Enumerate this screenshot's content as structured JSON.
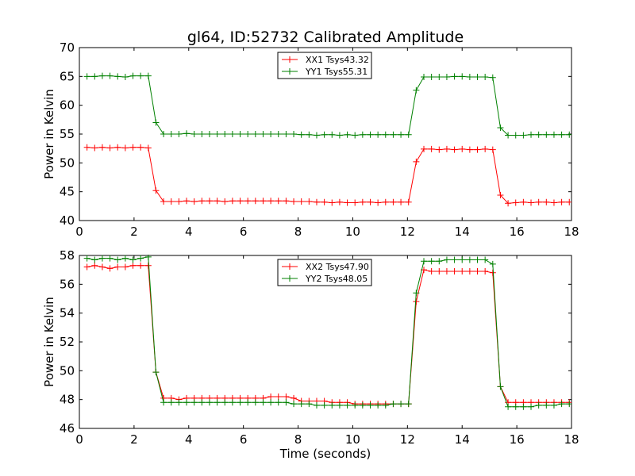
{
  "title": "gl64, ID:52732 Calibrated Amplitude",
  "xlabel": "Time (seconds)",
  "chart_data": [
    {
      "type": "line",
      "ylabel": "Power in Kelvin",
      "xlim": [
        0,
        18
      ],
      "ylim": [
        40,
        70
      ],
      "xticks": [
        "0",
        "2",
        "4",
        "6",
        "8",
        "10",
        "12",
        "14",
        "16",
        "18"
      ],
      "yticks": [
        "40",
        "45",
        "50",
        "55",
        "60",
        "65",
        "70"
      ],
      "legend_position": "upper center",
      "x": [
        0.28,
        0.56,
        0.84,
        1.12,
        1.4,
        1.68,
        1.96,
        2.24,
        2.52,
        2.8,
        3.08,
        3.36,
        3.64,
        3.92,
        4.2,
        4.48,
        4.76,
        5.04,
        5.32,
        5.6,
        5.88,
        6.16,
        6.44,
        6.72,
        7.0,
        7.28,
        7.56,
        7.84,
        8.12,
        8.4,
        8.68,
        8.96,
        9.24,
        9.52,
        9.8,
        10.08,
        10.36,
        10.64,
        10.92,
        11.2,
        11.48,
        11.76,
        12.04,
        12.32,
        12.6,
        12.88,
        13.16,
        13.44,
        13.72,
        14.0,
        14.28,
        14.56,
        14.84,
        15.12,
        15.4,
        15.68,
        15.96,
        16.24,
        16.52,
        16.8,
        17.08,
        17.36,
        17.64,
        17.92
      ],
      "series": [
        {
          "name": "XX1 Tsys43.32",
          "color": "#ff0000",
          "values": [
            52.7,
            52.6,
            52.7,
            52.6,
            52.7,
            52.6,
            52.7,
            52.7,
            52.6,
            45.2,
            43.3,
            43.3,
            43.3,
            43.4,
            43.3,
            43.4,
            43.4,
            43.4,
            43.3,
            43.4,
            43.4,
            43.4,
            43.4,
            43.4,
            43.4,
            43.4,
            43.4,
            43.3,
            43.3,
            43.3,
            43.2,
            43.2,
            43.1,
            43.2,
            43.1,
            43.1,
            43.2,
            43.2,
            43.1,
            43.2,
            43.2,
            43.2,
            43.2,
            50.2,
            52.4,
            52.4,
            52.3,
            52.4,
            52.3,
            52.4,
            52.3,
            52.3,
            52.4,
            52.3,
            44.4,
            43.0,
            43.1,
            43.2,
            43.1,
            43.2,
            43.2,
            43.1,
            43.2,
            43.2
          ]
        },
        {
          "name": "YY1 Tsys55.31",
          "color": "#008000",
          "values": [
            65.0,
            65.0,
            65.1,
            65.1,
            65.0,
            64.9,
            65.1,
            65.1,
            65.1,
            57.0,
            55.0,
            55.0,
            55.0,
            55.1,
            55.0,
            55.0,
            55.0,
            55.0,
            55.0,
            55.0,
            55.0,
            55.0,
            55.0,
            55.0,
            55.0,
            55.0,
            55.0,
            55.0,
            54.9,
            54.9,
            54.8,
            54.9,
            54.9,
            54.8,
            54.9,
            54.8,
            54.9,
            54.9,
            54.9,
            54.9,
            54.9,
            54.9,
            54.9,
            62.6,
            64.9,
            64.9,
            64.9,
            64.9,
            65.0,
            65.0,
            64.9,
            64.9,
            64.9,
            64.8,
            56.1,
            54.8,
            54.8,
            54.8,
            54.9,
            54.9,
            54.9,
            54.9,
            54.9,
            54.9
          ]
        }
      ]
    },
    {
      "type": "line",
      "ylabel": "Power in Kelvin",
      "xlim": [
        0,
        18
      ],
      "ylim": [
        46,
        58
      ],
      "xticks": [
        "0",
        "2",
        "4",
        "6",
        "8",
        "10",
        "12",
        "14",
        "16",
        "18"
      ],
      "yticks": [
        "46",
        "48",
        "50",
        "52",
        "54",
        "56",
        "58"
      ],
      "legend_position": "upper center",
      "x": [
        0.28,
        0.56,
        0.84,
        1.12,
        1.4,
        1.68,
        1.96,
        2.24,
        2.52,
        2.8,
        3.08,
        3.36,
        3.64,
        3.92,
        4.2,
        4.48,
        4.76,
        5.04,
        5.32,
        5.6,
        5.88,
        6.16,
        6.44,
        6.72,
        7.0,
        7.28,
        7.56,
        7.84,
        8.12,
        8.4,
        8.68,
        8.96,
        9.24,
        9.52,
        9.8,
        10.08,
        10.36,
        10.64,
        10.92,
        11.2,
        11.48,
        11.76,
        12.04,
        12.32,
        12.6,
        12.88,
        13.16,
        13.44,
        13.72,
        14.0,
        14.28,
        14.56,
        14.84,
        15.12,
        15.4,
        15.68,
        15.96,
        16.24,
        16.52,
        16.8,
        17.08,
        17.36,
        17.64,
        17.92
      ],
      "series": [
        {
          "name": "XX2 Tsys47.90",
          "color": "#ff0000",
          "values": [
            57.2,
            57.3,
            57.2,
            57.1,
            57.2,
            57.2,
            57.3,
            57.3,
            57.3,
            49.9,
            48.1,
            48.1,
            48.0,
            48.1,
            48.1,
            48.1,
            48.1,
            48.1,
            48.1,
            48.1,
            48.1,
            48.1,
            48.1,
            48.1,
            48.2,
            48.2,
            48.2,
            48.1,
            47.9,
            47.9,
            47.9,
            47.9,
            47.8,
            47.8,
            47.8,
            47.7,
            47.7,
            47.7,
            47.7,
            47.7,
            47.7,
            47.7,
            47.7,
            54.8,
            57.0,
            56.9,
            56.9,
            56.9,
            56.9,
            56.9,
            56.9,
            56.9,
            56.9,
            56.8,
            48.9,
            47.8,
            47.8,
            47.8,
            47.8,
            47.8,
            47.8,
            47.8,
            47.8,
            47.8
          ]
        },
        {
          "name": "YY2 Tsys48.05",
          "color": "#008000",
          "values": [
            57.8,
            57.7,
            57.8,
            57.8,
            57.7,
            57.8,
            57.7,
            57.8,
            57.9,
            49.9,
            47.8,
            47.8,
            47.8,
            47.8,
            47.8,
            47.8,
            47.8,
            47.8,
            47.8,
            47.8,
            47.8,
            47.8,
            47.8,
            47.8,
            47.8,
            47.8,
            47.8,
            47.7,
            47.7,
            47.7,
            47.6,
            47.6,
            47.6,
            47.6,
            47.6,
            47.6,
            47.6,
            47.6,
            47.6,
            47.6,
            47.7,
            47.7,
            47.7,
            55.4,
            57.6,
            57.6,
            57.6,
            57.7,
            57.7,
            57.7,
            57.7,
            57.7,
            57.7,
            57.4,
            48.9,
            47.5,
            47.5,
            47.5,
            47.5,
            47.6,
            47.6,
            47.6,
            47.7,
            47.7
          ]
        }
      ]
    }
  ]
}
